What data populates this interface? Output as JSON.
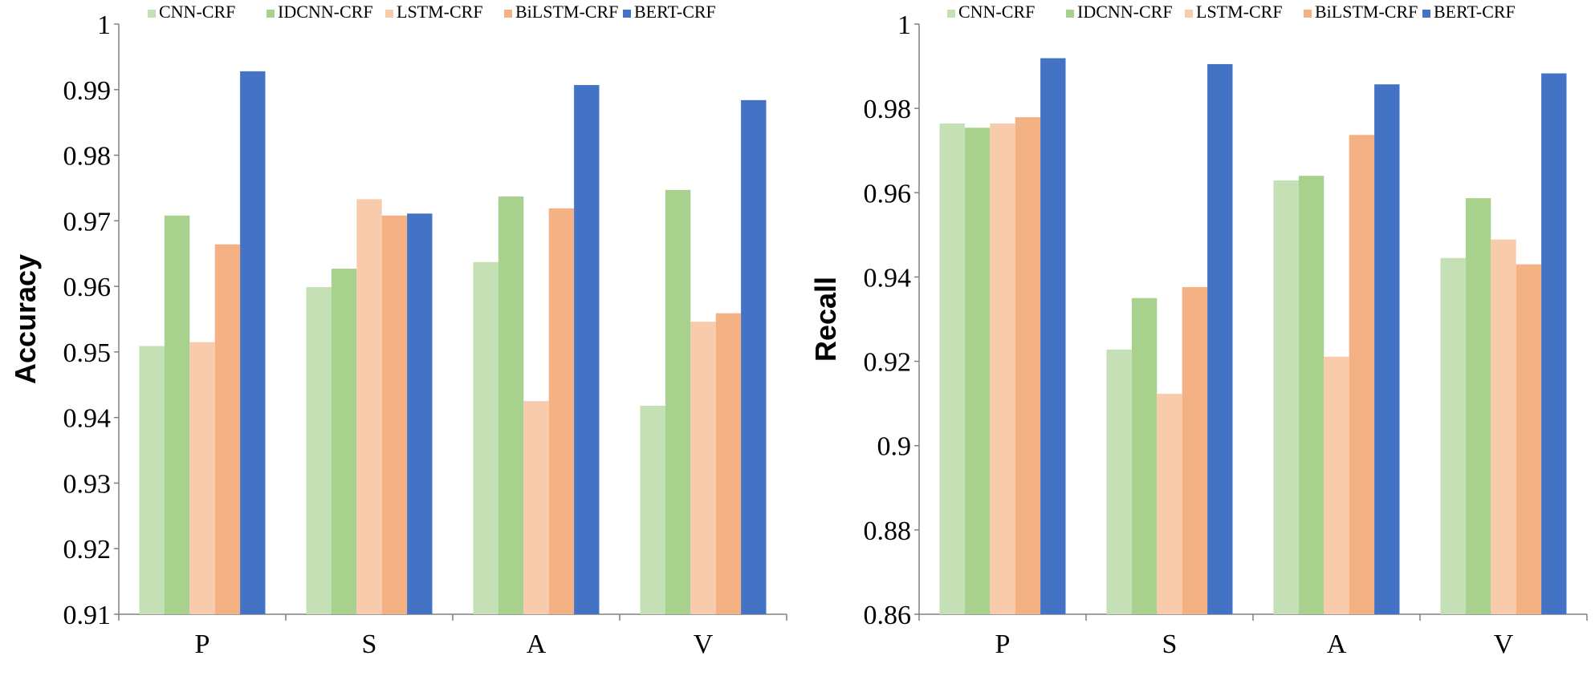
{
  "colors": {
    "CNN-CRF": "#c5e0b4",
    "IDCNN-CRF": "#a9d18e",
    "LSTM-CRF": "#f8cbad",
    "BiLSTM-CRF": "#f4b183",
    "BERT-CRF": "#4472c4"
  },
  "chart_data": [
    {
      "type": "bar",
      "ylabel": "Accuracy",
      "ylim": [
        0.91,
        1
      ],
      "yticks": [
        "0.91",
        "0.92",
        "0.93",
        "0.94",
        "0.95",
        "0.96",
        "0.97",
        "0.98",
        "0.99",
        "1"
      ],
      "ytick_values": [
        0.91,
        0.92,
        0.93,
        0.94,
        0.95,
        0.96,
        0.97,
        0.98,
        0.99,
        1.0
      ],
      "categories": [
        "P",
        "S",
        "A",
        "V"
      ],
      "legend": "top",
      "grid": false,
      "series": [
        {
          "name": "CNN-CRF",
          "values": [
            0.9509,
            0.9599,
            0.9637,
            0.9418
          ]
        },
        {
          "name": "IDCNN-CRF",
          "values": [
            0.9708,
            0.9627,
            0.9737,
            0.9747
          ]
        },
        {
          "name": "LSTM-CRF",
          "values": [
            0.9515,
            0.9733,
            0.9425,
            0.9546
          ]
        },
        {
          "name": "BiLSTM-CRF",
          "values": [
            0.9664,
            0.9708,
            0.9719,
            0.9559
          ]
        },
        {
          "name": "BERT-CRF",
          "values": [
            0.9928,
            0.9711,
            0.9907,
            0.9884
          ]
        }
      ]
    },
    {
      "type": "bar",
      "ylabel": "Recall",
      "ylim": [
        0.86,
        1
      ],
      "yticks": [
        "0.86",
        "0.88",
        "0.9",
        "0.92",
        "0.94",
        "0.96",
        "0.98",
        "1"
      ],
      "ytick_values": [
        0.86,
        0.88,
        0.9,
        0.92,
        0.94,
        0.96,
        0.98,
        1.0
      ],
      "categories": [
        "P",
        "S",
        "A",
        "V"
      ],
      "legend": "top",
      "grid": false,
      "series": [
        {
          "name": "CNN-CRF",
          "values": [
            0.9764,
            0.9228,
            0.9629,
            0.9445
          ]
        },
        {
          "name": "IDCNN-CRF",
          "values": [
            0.9754,
            0.935,
            0.964,
            0.9587
          ]
        },
        {
          "name": "LSTM-CRF",
          "values": [
            0.9764,
            0.9123,
            0.9211,
            0.9489
          ]
        },
        {
          "name": "BiLSTM-CRF",
          "values": [
            0.9779,
            0.9376,
            0.9737,
            0.943
          ]
        },
        {
          "name": "BERT-CRF",
          "values": [
            0.9919,
            0.9905,
            0.9857,
            0.9883
          ]
        }
      ]
    }
  ]
}
